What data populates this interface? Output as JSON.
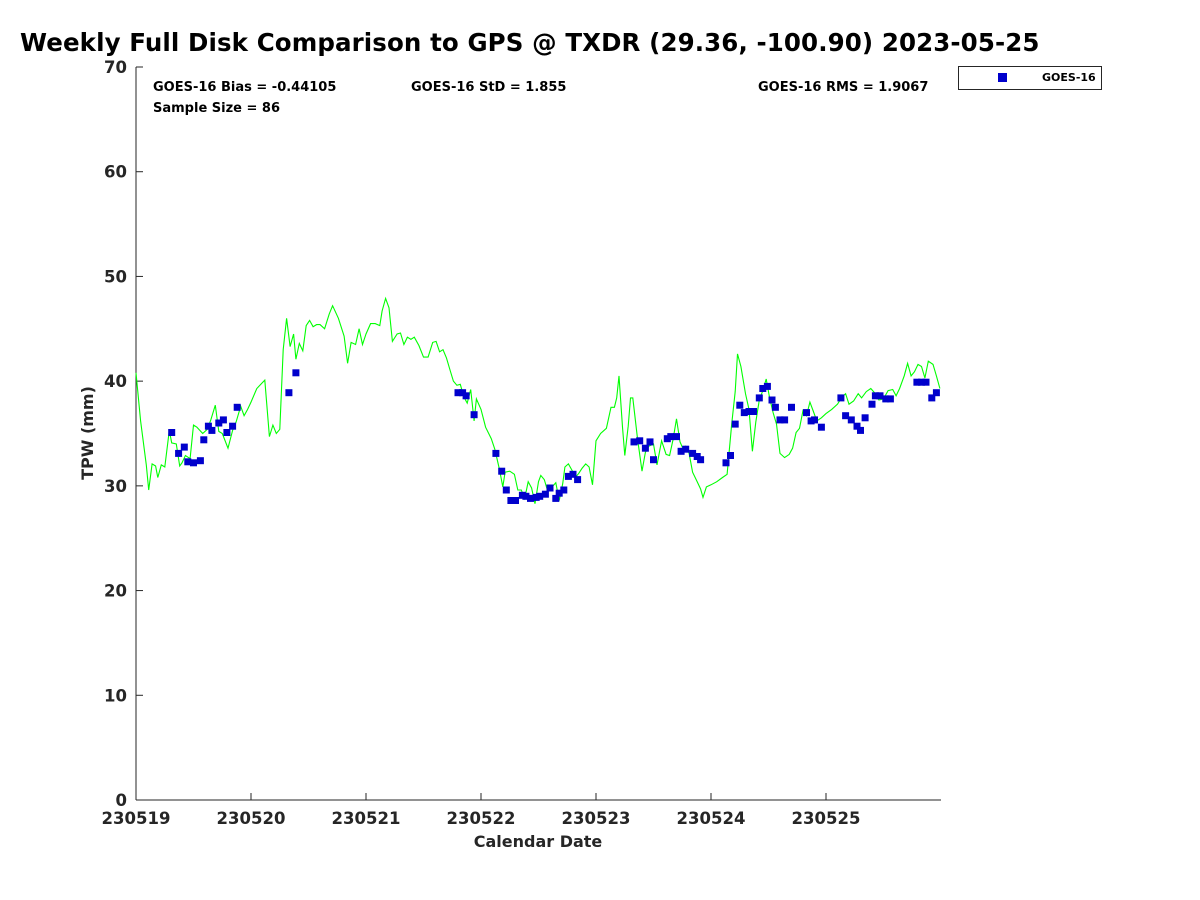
{
  "chart_data": {
    "type": "scatter",
    "title": "Weekly Full Disk Comparison to GPS @ TXDR (29.36, -100.90) 2023-05-25",
    "xlabel": "Calendar Date",
    "ylabel": "TPW (mm)",
    "xlim": [
      0,
      7
    ],
    "ylim": [
      0,
      70
    ],
    "x_ticks": [
      0,
      1,
      2,
      3,
      4,
      5,
      6
    ],
    "x_tick_labels": [
      "230519",
      "230520",
      "230521",
      "230522",
      "230523",
      "230524",
      "230525"
    ],
    "y_ticks": [
      0,
      10,
      20,
      30,
      40,
      50,
      60,
      70
    ],
    "y_tick_labels": [
      "0",
      "10",
      "20",
      "30",
      "40",
      "50",
      "60",
      "70"
    ],
    "stats": {
      "bias": "GOES-16 Bias = -0.44105",
      "std": "GOES-16 StD = 1.855",
      "rms": "GOES-16 RMS = 1.9067",
      "sample": "Sample Size = 86"
    },
    "legend": {
      "position": "top-right-outside",
      "label": "GOES-16"
    },
    "colors": {
      "goes": "#0000cc",
      "gps": "#00ff00"
    },
    "series": [
      {
        "name": "GOES-16",
        "kind": "scatter",
        "points": [
          [
            0.31,
            35.1
          ],
          [
            0.37,
            33.1
          ],
          [
            0.42,
            33.7
          ],
          [
            0.45,
            32.3
          ],
          [
            0.5,
            32.2
          ],
          [
            0.56,
            32.4
          ],
          [
            0.59,
            34.4
          ],
          [
            0.63,
            35.7
          ],
          [
            0.66,
            35.3
          ],
          [
            0.72,
            36.0
          ],
          [
            0.76,
            36.3
          ],
          [
            0.79,
            35.1
          ],
          [
            0.84,
            35.7
          ],
          [
            0.88,
            37.5
          ],
          [
            1.33,
            38.9
          ],
          [
            1.39,
            40.8
          ],
          [
            2.8,
            38.9
          ],
          [
            2.84,
            38.9
          ],
          [
            2.87,
            38.6
          ],
          [
            2.94,
            36.8
          ],
          [
            3.13,
            33.1
          ],
          [
            3.18,
            31.4
          ],
          [
            3.22,
            29.6
          ],
          [
            3.26,
            28.6
          ],
          [
            3.3,
            28.6
          ],
          [
            3.36,
            29.1
          ],
          [
            3.39,
            29.0
          ],
          [
            3.43,
            28.8
          ],
          [
            3.48,
            28.9
          ],
          [
            3.51,
            29.0
          ],
          [
            3.56,
            29.2
          ],
          [
            3.6,
            29.8
          ],
          [
            3.65,
            28.8
          ],
          [
            3.68,
            29.3
          ],
          [
            3.72,
            29.6
          ],
          [
            3.76,
            30.9
          ],
          [
            3.8,
            31.1
          ],
          [
            3.84,
            30.6
          ],
          [
            4.33,
            34.2
          ],
          [
            4.38,
            34.3
          ],
          [
            4.43,
            33.6
          ],
          [
            4.47,
            34.2
          ],
          [
            4.5,
            32.5
          ],
          [
            4.62,
            34.5
          ],
          [
            4.65,
            34.7
          ],
          [
            4.7,
            34.7
          ],
          [
            4.74,
            33.3
          ],
          [
            4.78,
            33.5
          ],
          [
            4.84,
            33.1
          ],
          [
            4.88,
            32.8
          ],
          [
            4.91,
            32.5
          ],
          [
            5.13,
            32.2
          ],
          [
            5.17,
            32.9
          ],
          [
            5.21,
            35.9
          ],
          [
            5.25,
            37.7
          ],
          [
            5.29,
            37.0
          ],
          [
            5.33,
            37.1
          ],
          [
            5.37,
            37.1
          ],
          [
            5.42,
            38.4
          ],
          [
            5.45,
            39.3
          ],
          [
            5.49,
            39.5
          ],
          [
            5.53,
            38.2
          ],
          [
            5.56,
            37.5
          ],
          [
            5.6,
            36.3
          ],
          [
            5.64,
            36.3
          ],
          [
            5.7,
            37.5
          ],
          [
            5.83,
            37.0
          ],
          [
            5.87,
            36.2
          ],
          [
            5.9,
            36.3
          ],
          [
            5.96,
            35.6
          ],
          [
            6.13,
            38.4
          ],
          [
            6.17,
            36.7
          ],
          [
            6.22,
            36.3
          ],
          [
            6.27,
            35.7
          ],
          [
            6.3,
            35.3
          ],
          [
            6.34,
            36.5
          ],
          [
            6.4,
            37.8
          ],
          [
            6.43,
            38.6
          ],
          [
            6.47,
            38.6
          ],
          [
            6.52,
            38.3
          ],
          [
            6.56,
            38.3
          ],
          [
            6.79,
            39.9
          ],
          [
            6.83,
            39.9
          ],
          [
            6.87,
            39.9
          ],
          [
            6.92,
            38.4
          ],
          [
            6.96,
            38.9
          ]
        ]
      },
      {
        "name": "GPS",
        "kind": "line",
        "points": [
          [
            0.0,
            40.8
          ],
          [
            0.04,
            36.2
          ],
          [
            0.09,
            32.0
          ],
          [
            0.11,
            29.6
          ],
          [
            0.14,
            32.1
          ],
          [
            0.17,
            31.9
          ],
          [
            0.19,
            30.8
          ],
          [
            0.22,
            32.0
          ],
          [
            0.25,
            31.8
          ],
          [
            0.29,
            35.3
          ],
          [
            0.31,
            34.1
          ],
          [
            0.35,
            34.0
          ],
          [
            0.38,
            31.9
          ],
          [
            0.4,
            32.2
          ],
          [
            0.43,
            32.9
          ],
          [
            0.47,
            32.6
          ],
          [
            0.5,
            35.8
          ],
          [
            0.53,
            35.6
          ],
          [
            0.58,
            35.0
          ],
          [
            0.62,
            35.4
          ],
          [
            0.65,
            36.3
          ],
          [
            0.69,
            37.7
          ],
          [
            0.72,
            35.2
          ],
          [
            0.75,
            35.0
          ],
          [
            0.8,
            33.6
          ],
          [
            0.84,
            35.3
          ],
          [
            0.87,
            36.1
          ],
          [
            0.91,
            37.6
          ],
          [
            0.94,
            36.7
          ],
          [
            0.97,
            37.3
          ],
          [
            1.0,
            38.0
          ],
          [
            1.05,
            39.3
          ],
          [
            1.12,
            40.1
          ],
          [
            1.16,
            34.7
          ],
          [
            1.19,
            35.8
          ],
          [
            1.22,
            35.0
          ],
          [
            1.25,
            35.4
          ],
          [
            1.28,
            43.0
          ],
          [
            1.31,
            46.0
          ],
          [
            1.34,
            43.3
          ],
          [
            1.37,
            44.5
          ],
          [
            1.39,
            42.1
          ],
          [
            1.42,
            43.6
          ],
          [
            1.45,
            42.9
          ],
          [
            1.48,
            45.3
          ],
          [
            1.51,
            45.8
          ],
          [
            1.54,
            45.2
          ],
          [
            1.57,
            45.4
          ],
          [
            1.6,
            45.4
          ],
          [
            1.64,
            45.0
          ],
          [
            1.68,
            46.4
          ],
          [
            1.71,
            47.2
          ],
          [
            1.76,
            46.0
          ],
          [
            1.81,
            44.3
          ],
          [
            1.84,
            41.7
          ],
          [
            1.87,
            43.7
          ],
          [
            1.91,
            43.5
          ],
          [
            1.94,
            45.0
          ],
          [
            1.97,
            43.5
          ],
          [
            2.0,
            44.5
          ],
          [
            2.04,
            45.5
          ],
          [
            2.08,
            45.5
          ],
          [
            2.12,
            45.3
          ],
          [
            2.14,
            46.7
          ],
          [
            2.17,
            47.9
          ],
          [
            2.2,
            47.0
          ],
          [
            2.23,
            43.8
          ],
          [
            2.27,
            44.5
          ],
          [
            2.3,
            44.6
          ],
          [
            2.33,
            43.5
          ],
          [
            2.36,
            44.2
          ],
          [
            2.39,
            44.0
          ],
          [
            2.42,
            44.2
          ],
          [
            2.46,
            43.4
          ],
          [
            2.5,
            42.3
          ],
          [
            2.54,
            42.3
          ],
          [
            2.58,
            43.7
          ],
          [
            2.61,
            43.8
          ],
          [
            2.64,
            42.8
          ],
          [
            2.67,
            43.0
          ],
          [
            2.7,
            42.2
          ],
          [
            2.73,
            41.1
          ],
          [
            2.76,
            40.0
          ],
          [
            2.79,
            39.6
          ],
          [
            2.82,
            39.7
          ],
          [
            2.85,
            38.5
          ],
          [
            2.88,
            37.9
          ],
          [
            2.91,
            39.2
          ],
          [
            2.94,
            36.2
          ],
          [
            2.96,
            38.3
          ],
          [
            3.0,
            37.3
          ],
          [
            3.04,
            35.6
          ],
          [
            3.09,
            34.5
          ],
          [
            3.12,
            33.5
          ],
          [
            3.16,
            31.6
          ],
          [
            3.19,
            29.9
          ],
          [
            3.21,
            31.3
          ],
          [
            3.25,
            31.4
          ],
          [
            3.29,
            31.1
          ],
          [
            3.32,
            29.6
          ],
          [
            3.35,
            29.6
          ],
          [
            3.38,
            28.8
          ],
          [
            3.41,
            30.4
          ],
          [
            3.44,
            29.8
          ],
          [
            3.47,
            28.3
          ],
          [
            3.5,
            30.4
          ],
          [
            3.52,
            31.0
          ],
          [
            3.55,
            30.6
          ],
          [
            3.58,
            29.5
          ],
          [
            3.61,
            29.8
          ],
          [
            3.65,
            30.3
          ],
          [
            3.68,
            28.6
          ],
          [
            3.71,
            30.2
          ],
          [
            3.73,
            31.8
          ],
          [
            3.76,
            32.1
          ],
          [
            3.79,
            31.5
          ],
          [
            3.82,
            30.8
          ],
          [
            3.85,
            31.2
          ],
          [
            3.88,
            31.7
          ],
          [
            3.91,
            32.1
          ],
          [
            3.94,
            31.8
          ],
          [
            3.97,
            30.1
          ],
          [
            4.0,
            34.3
          ],
          [
            4.04,
            35.0
          ],
          [
            4.09,
            35.5
          ],
          [
            4.13,
            37.5
          ],
          [
            4.16,
            37.5
          ],
          [
            4.18,
            38.4
          ],
          [
            4.2,
            40.5
          ],
          [
            4.23,
            35.6
          ],
          [
            4.25,
            32.9
          ],
          [
            4.28,
            35.7
          ],
          [
            4.3,
            38.4
          ],
          [
            4.32,
            38.4
          ],
          [
            4.36,
            34.6
          ],
          [
            4.4,
            31.4
          ],
          [
            4.43,
            33.2
          ],
          [
            4.46,
            33.8
          ],
          [
            4.5,
            34.0
          ],
          [
            4.53,
            32.0
          ],
          [
            4.57,
            34.3
          ],
          [
            4.61,
            33.0
          ],
          [
            4.64,
            32.9
          ],
          [
            4.67,
            34.4
          ],
          [
            4.7,
            36.4
          ],
          [
            4.73,
            34.2
          ],
          [
            4.75,
            33.7
          ],
          [
            4.78,
            33.8
          ],
          [
            4.81,
            33.1
          ],
          [
            4.84,
            31.3
          ],
          [
            4.88,
            30.4
          ],
          [
            4.91,
            29.7
          ],
          [
            4.93,
            28.9
          ],
          [
            4.96,
            29.9
          ],
          [
            5.0,
            30.1
          ],
          [
            5.05,
            30.4
          ],
          [
            5.1,
            30.8
          ],
          [
            5.14,
            31.1
          ],
          [
            5.18,
            35.9
          ],
          [
            5.21,
            39.0
          ],
          [
            5.23,
            42.6
          ],
          [
            5.26,
            41.4
          ],
          [
            5.3,
            38.8
          ],
          [
            5.33,
            37.3
          ],
          [
            5.36,
            33.3
          ],
          [
            5.39,
            36.1
          ],
          [
            5.42,
            38.2
          ],
          [
            5.45,
            39.1
          ],
          [
            5.48,
            40.2
          ],
          [
            5.51,
            38.4
          ],
          [
            5.54,
            37.0
          ],
          [
            5.57,
            35.9
          ],
          [
            5.6,
            33.1
          ],
          [
            5.64,
            32.7
          ],
          [
            5.68,
            33.0
          ],
          [
            5.71,
            33.6
          ],
          [
            5.74,
            35.1
          ],
          [
            5.77,
            35.5
          ],
          [
            5.8,
            37.2
          ],
          [
            5.83,
            36.7
          ],
          [
            5.86,
            38.0
          ],
          [
            5.89,
            37.1
          ],
          [
            5.92,
            36.2
          ],
          [
            5.96,
            36.5
          ],
          [
            6.0,
            36.9
          ],
          [
            6.05,
            37.3
          ],
          [
            6.1,
            37.8
          ],
          [
            6.14,
            38.5
          ],
          [
            6.17,
            38.8
          ],
          [
            6.2,
            37.8
          ],
          [
            6.24,
            38.1
          ],
          [
            6.28,
            38.8
          ],
          [
            6.31,
            38.4
          ],
          [
            6.35,
            39.0
          ],
          [
            6.39,
            39.3
          ],
          [
            6.43,
            38.8
          ],
          [
            6.46,
            38.2
          ],
          [
            6.5,
            38.3
          ],
          [
            6.54,
            39.1
          ],
          [
            6.58,
            39.2
          ],
          [
            6.61,
            38.6
          ],
          [
            6.64,
            39.3
          ],
          [
            6.68,
            40.5
          ],
          [
            6.71,
            41.7
          ],
          [
            6.74,
            40.5
          ],
          [
            6.77,
            40.9
          ],
          [
            6.8,
            41.6
          ],
          [
            6.83,
            41.4
          ],
          [
            6.86,
            40.3
          ],
          [
            6.89,
            41.9
          ],
          [
            6.93,
            41.6
          ],
          [
            6.96,
            40.5
          ],
          [
            6.99,
            39.3
          ]
        ]
      }
    ]
  }
}
